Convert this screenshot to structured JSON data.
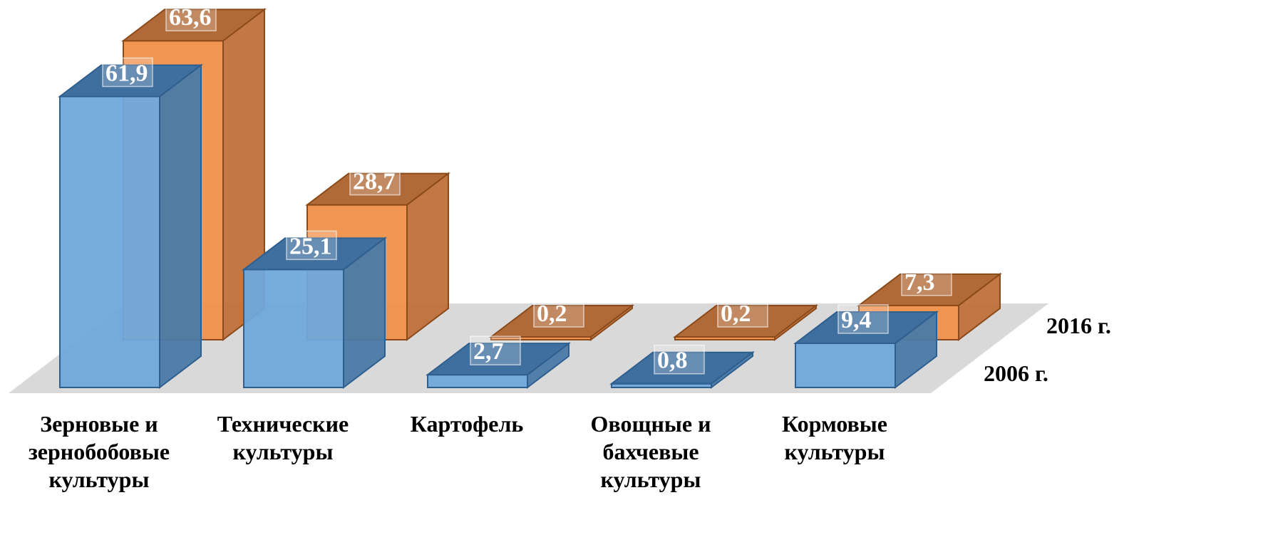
{
  "chart_data": {
    "type": "bar",
    "categories": [
      [
        "Зерновые и",
        "зернобобовые",
        "культуры"
      ],
      [
        "Технические",
        "культуры"
      ],
      [
        "Картофель"
      ],
      [
        "Овощные и",
        "бахчевые",
        "культуры"
      ],
      [
        "Кормовые",
        "культуры"
      ]
    ],
    "series": [
      {
        "name": "2006 г.",
        "values": [
          61.9,
          25.1,
          2.7,
          0.8,
          9.4
        ],
        "labels": [
          "61,9",
          "25,1",
          "2,7",
          "0,8",
          "9,4"
        ]
      },
      {
        "name": "2016 г.",
        "values": [
          63.6,
          28.7,
          0.2,
          0.2,
          7.3
        ],
        "labels": [
          "63,6",
          "28,7",
          "0,2",
          "0,2",
          "7,3"
        ]
      }
    ],
    "style": "3d-columns",
    "colors": {
      "2006 г.": {
        "front": "#6fa8dc",
        "side": "#4a7aa8",
        "top": "#3f6f9e",
        "stroke": "#2f5f8f"
      },
      "2016 г.": {
        "front": "#f0904a",
        "side": "#c0703a",
        "top": "#b06a38",
        "stroke": "#8a4a1a"
      },
      "floor": "#d9d9d9"
    },
    "legend": "series labels at right of depth axis"
  }
}
